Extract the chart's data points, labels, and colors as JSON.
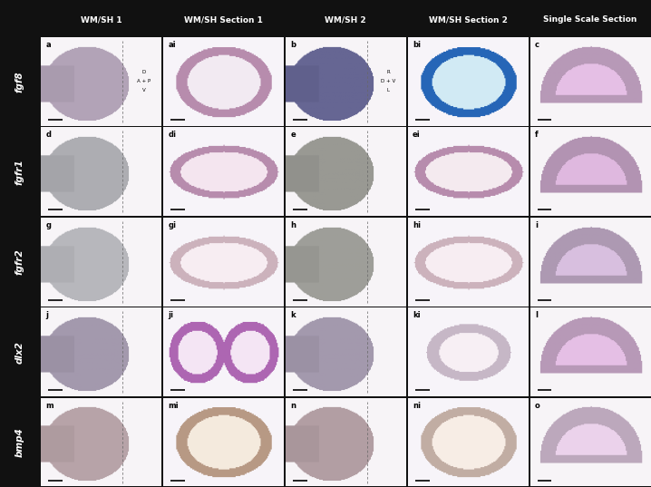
{
  "col_headers": [
    "WM/SH 1",
    "WM/SH Section 1",
    "WM/SH 2",
    "WM/SH Section 2",
    "Single Scale Section"
  ],
  "row_labels": [
    "fgf8",
    "fgfr1",
    "fgfr2",
    "dlx2",
    "bmp4"
  ],
  "panel_labels": [
    [
      "a",
      "ai",
      "b",
      "bi",
      "c"
    ],
    [
      "d",
      "di",
      "e",
      "ei",
      "f"
    ],
    [
      "g",
      "gi",
      "h",
      "hi",
      "i"
    ],
    [
      "j",
      "ji",
      "k",
      "ki",
      "l"
    ],
    [
      "m",
      "mi",
      "n",
      "ni",
      "o"
    ]
  ],
  "bg_color": "#111111",
  "header_text_color": "#ffffff",
  "row_label_color": "#ffffff",
  "figsize": [
    7.18,
    5.37
  ],
  "dpi": 100,
  "panel_bg": [
    [
      "#c8bcc4",
      "#f5f0f3",
      "#8890b0",
      "#d8eef5",
      "#e8e0ec"
    ],
    [
      "#b8b8b8",
      "#f0e8ef",
      "#a0a098",
      "#f5f0f2",
      "#e0d4e0"
    ],
    [
      "#c4c4c4",
      "#f5eeef",
      "#a8a8a0",
      "#f5eef0",
      "#e8e0e8"
    ],
    [
      "#b0a8b8",
      "#f0ecf5",
      "#b0a8b8",
      "#ece8ec",
      "#ddd0d8"
    ],
    [
      "#c4b0b4",
      "#eee8d8",
      "#c0b0b8",
      "#f5eee8",
      "#e0d4e0"
    ]
  ],
  "dir_labels_a": [
    "D",
    "A + P",
    "V"
  ],
  "dir_labels_b": [
    "R",
    "D + V",
    "L"
  ]
}
